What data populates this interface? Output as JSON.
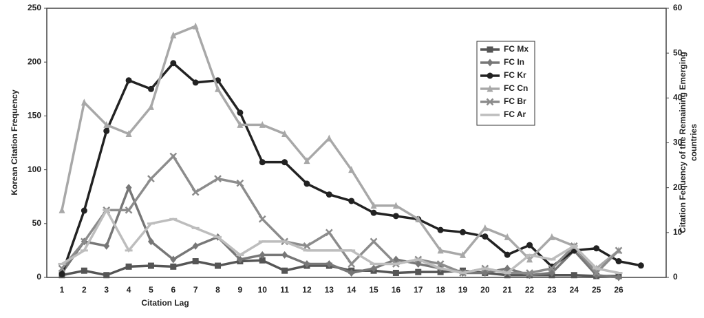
{
  "chart_data": {
    "type": "line",
    "xlabel": "Citation Lag",
    "ylabel": "Korean Citation Frequency",
    "y2label": [
      "Citation Fequency of the Remaining Emerging",
      "countries"
    ],
    "categories": [
      "1",
      "2",
      "3",
      "4",
      "5",
      "6",
      "7",
      "8",
      "9",
      "10",
      "11",
      "12",
      "13",
      "14",
      "15",
      "16",
      "17",
      "18",
      "19",
      "20",
      "21",
      "22",
      "23",
      "24",
      "25",
      "26",
      null
    ],
    "ylim": [
      0,
      250
    ],
    "yticks": [
      0,
      50,
      100,
      150,
      200,
      250
    ],
    "y2lim": [
      0,
      60
    ],
    "y2ticks": [
      0,
      10,
      20,
      30,
      40,
      50,
      60
    ],
    "series": [
      {
        "name": "FC Mx",
        "color": "#555555",
        "marker": "square",
        "axis": "y2",
        "values": [
          0.5,
          1.5,
          0.5,
          2.4,
          2.6,
          2.4,
          3.6,
          2.6,
          3.6,
          3.8,
          1.5,
          2.6,
          2.6,
          1.5,
          1.5,
          1,
          1.2,
          1.2,
          1.5,
          1,
          0.5,
          0.5,
          0.5,
          0.5,
          0.3,
          0.3,
          null
        ]
      },
      {
        "name": "FC In",
        "color": "#777777",
        "marker": "diamond",
        "axis": "y2",
        "values": [
          1,
          8,
          7,
          20,
          8,
          4,
          7,
          9,
          4,
          5,
          5,
          3,
          3,
          1,
          2,
          4,
          3,
          2,
          1,
          1,
          2,
          0.5,
          1,
          6,
          0.5,
          0,
          null
        ]
      },
      {
        "name": "FC Kr",
        "color": "#222222",
        "marker": "circle",
        "values": [
          3,
          62,
          136,
          183,
          175,
          199,
          181,
          183,
          153,
          107,
          107,
          87,
          77,
          71,
          60,
          57,
          54,
          44,
          42,
          38,
          21,
          30,
          10,
          25,
          27,
          15,
          11
        ]
      },
      {
        "name": "FC Cn",
        "color": "#a8a8a8",
        "marker": "triangle",
        "axis": "y2",
        "values": [
          15,
          39,
          34,
          32,
          38,
          54,
          56,
          42,
          34,
          34,
          32,
          26,
          31,
          24,
          16,
          16,
          13,
          6,
          5,
          11,
          9,
          4,
          9,
          7,
          2,
          6,
          null
        ]
      },
      {
        "name": "FC Br",
        "color": "#8c8c8c",
        "marker": "x",
        "axis": "y2",
        "values": [
          2,
          8,
          15,
          15,
          22,
          27,
          19,
          22,
          21,
          13,
          8,
          7,
          10,
          3,
          8,
          3,
          4,
          3,
          1,
          2,
          1,
          1,
          2,
          7,
          1,
          6,
          null
        ]
      },
      {
        "name": "FC Ar",
        "color": "#bdbdbd",
        "marker": "dash",
        "axis": "y2",
        "values": [
          3,
          6,
          15,
          6,
          12,
          13,
          11,
          9,
          5,
          8,
          8,
          6,
          6,
          6,
          3,
          3,
          4,
          2,
          1,
          2,
          1,
          5,
          4,
          7,
          2,
          1,
          null
        ]
      }
    ]
  }
}
